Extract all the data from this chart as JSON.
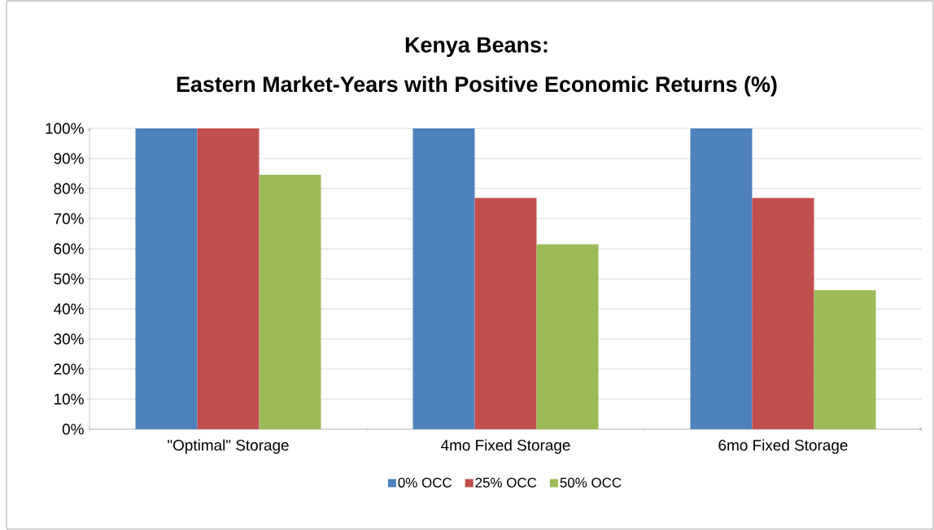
{
  "chart_data": {
    "type": "bar",
    "title": "Kenya Beans:",
    "subtitle": "Eastern Market-Years with Positive Economic Returns (%)",
    "categories": [
      "\"Optimal\" Storage",
      "4mo Fixed Storage",
      "6mo Fixed Storage"
    ],
    "series": [
      {
        "name": "0% OCC",
        "color": "#4f81bd",
        "values": [
          100,
          100,
          100
        ]
      },
      {
        "name": "25% OCC",
        "color": "#c0504d",
        "values": [
          100,
          76.9,
          76.9
        ]
      },
      {
        "name": "50% OCC",
        "color": "#9bbb59",
        "values": [
          84.6,
          61.5,
          46.2
        ]
      }
    ],
    "ylim": [
      0,
      100
    ],
    "yticks": [
      {
        "value": 0,
        "label": "0%"
      },
      {
        "value": 10,
        "label": "10%"
      },
      {
        "value": 20,
        "label": "20%"
      },
      {
        "value": 30,
        "label": "30%"
      },
      {
        "value": 40,
        "label": "40%"
      },
      {
        "value": 50,
        "label": "50%"
      },
      {
        "value": 60,
        "label": "60%"
      },
      {
        "value": 70,
        "label": "70%"
      },
      {
        "value": 80,
        "label": "80%"
      },
      {
        "value": 90,
        "label": "90%"
      },
      {
        "value": 100,
        "label": "100%"
      }
    ],
    "grid": "y",
    "legend": "bottom"
  }
}
